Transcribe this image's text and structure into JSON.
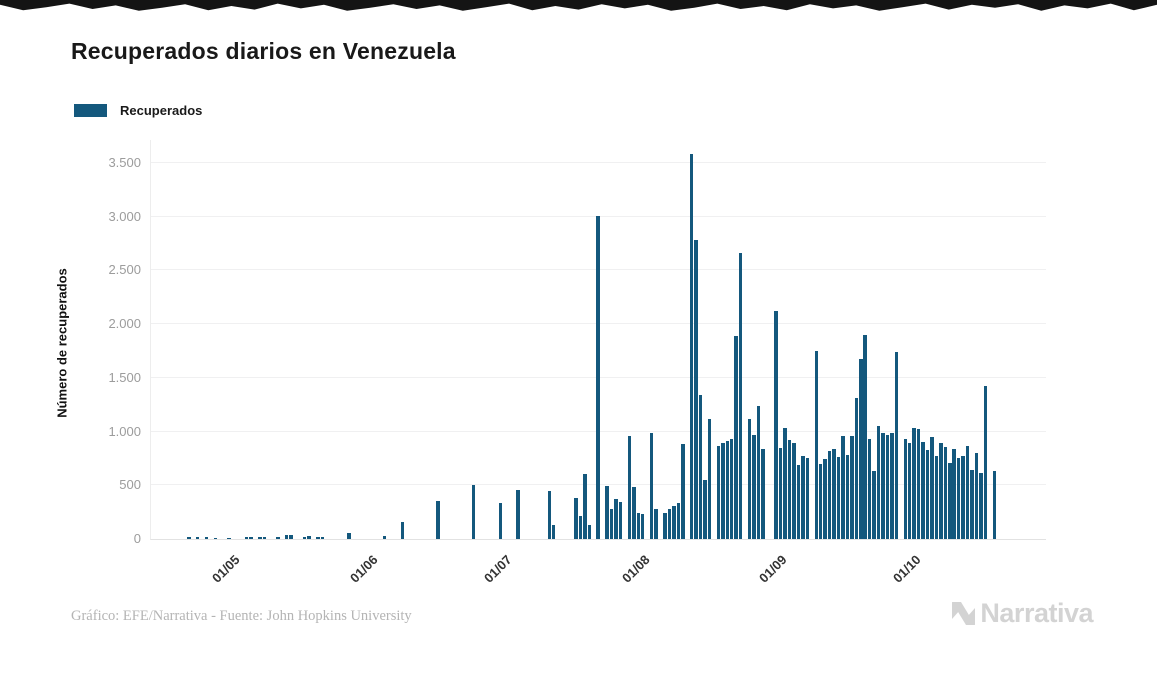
{
  "header": {
    "title": "Recuperados diarios en Venezuela"
  },
  "legend": {
    "items": [
      {
        "label": "Recuperados",
        "color": "#14587D"
      }
    ]
  },
  "footer": {
    "credit": "Gráfico: EFE/Narrativa - Fuente: John Hopkins University",
    "brand": "Narrativa"
  },
  "chart_data": {
    "type": "bar",
    "title": "Recuperados diarios en Venezuela",
    "xlabel": "",
    "ylabel": "Número de recuperados",
    "series_name": "Recuperados",
    "bar_color": "#14587D",
    "grid": true,
    "legend_position": "top-left",
    "ylim": [
      0,
      3500
    ],
    "x_domain": [
      "2020-04-13",
      "2020-10-29"
    ],
    "yticks": [
      {
        "value": 0,
        "label": "0"
      },
      {
        "value": 500,
        "label": "500"
      },
      {
        "value": 1000,
        "label": "1.000"
      },
      {
        "value": 1500,
        "label": "1.500"
      },
      {
        "value": 2000,
        "label": "2.000"
      },
      {
        "value": 2500,
        "label": "2.500"
      },
      {
        "value": 3000,
        "label": "3.000"
      },
      {
        "value": 3500,
        "label": "3.500"
      }
    ],
    "xticks": [
      {
        "date": "2020-05-01",
        "label": "01/05"
      },
      {
        "date": "2020-06-01",
        "label": "01/06"
      },
      {
        "date": "2020-07-01",
        "label": "01/07"
      },
      {
        "date": "2020-08-01",
        "label": "01/08"
      },
      {
        "date": "2020-09-01",
        "label": "01/09"
      },
      {
        "date": "2020-10-01",
        "label": "01/10"
      }
    ],
    "points": [
      [
        "2020-04-21",
        20
      ],
      [
        "2020-04-23",
        22
      ],
      [
        "2020-04-25",
        18
      ],
      [
        "2020-04-27",
        12
      ],
      [
        "2020-04-30",
        10
      ],
      [
        "2020-05-04",
        16
      ],
      [
        "2020-05-05",
        18
      ],
      [
        "2020-05-07",
        19
      ],
      [
        "2020-05-08",
        20
      ],
      [
        "2020-05-11",
        22
      ],
      [
        "2020-05-13",
        38
      ],
      [
        "2020-05-14",
        40
      ],
      [
        "2020-05-17",
        19
      ],
      [
        "2020-05-18",
        25
      ],
      [
        "2020-05-20",
        20
      ],
      [
        "2020-05-21",
        19
      ],
      [
        "2020-05-27",
        52
      ],
      [
        "2020-06-04",
        32
      ],
      [
        "2020-06-08",
        158
      ],
      [
        "2020-06-16",
        350
      ],
      [
        "2020-06-24",
        505
      ],
      [
        "2020-06-30",
        335
      ],
      [
        "2020-07-04",
        460
      ],
      [
        "2020-07-11",
        450
      ],
      [
        "2020-07-12",
        130
      ],
      [
        "2020-07-17",
        385
      ],
      [
        "2020-07-18",
        210
      ],
      [
        "2020-07-19",
        605
      ],
      [
        "2020-07-20",
        135
      ],
      [
        "2020-07-22",
        3010
      ],
      [
        "2020-07-24",
        495
      ],
      [
        "2020-07-25",
        280
      ],
      [
        "2020-07-26",
        375
      ],
      [
        "2020-07-27",
        345
      ],
      [
        "2020-07-29",
        955
      ],
      [
        "2020-07-30",
        480
      ],
      [
        "2020-07-31",
        240
      ],
      [
        "2020-08-01",
        230
      ],
      [
        "2020-08-03",
        985
      ],
      [
        "2020-08-04",
        280
      ],
      [
        "2020-08-06",
        245
      ],
      [
        "2020-08-07",
        280
      ],
      [
        "2020-08-08",
        310
      ],
      [
        "2020-08-09",
        335
      ],
      [
        "2020-08-10",
        885
      ],
      [
        "2020-08-12",
        3580
      ],
      [
        "2020-08-13",
        2780
      ],
      [
        "2020-08-14",
        1340
      ],
      [
        "2020-08-15",
        545
      ],
      [
        "2020-08-16",
        1120
      ],
      [
        "2020-08-18",
        870
      ],
      [
        "2020-08-19",
        890
      ],
      [
        "2020-08-20",
        915
      ],
      [
        "2020-08-21",
        930
      ],
      [
        "2020-08-22",
        1890
      ],
      [
        "2020-08-23",
        2660
      ],
      [
        "2020-08-25",
        1120
      ],
      [
        "2020-08-26",
        965
      ],
      [
        "2020-08-27",
        1235
      ],
      [
        "2020-08-28",
        840
      ],
      [
        "2020-08-31",
        2120
      ],
      [
        "2020-09-01",
        850
      ],
      [
        "2020-09-02",
        1030
      ],
      [
        "2020-09-03",
        925
      ],
      [
        "2020-09-04",
        890
      ],
      [
        "2020-09-05",
        690
      ],
      [
        "2020-09-06",
        775
      ],
      [
        "2020-09-07",
        750
      ],
      [
        "2020-09-09",
        1750
      ],
      [
        "2020-09-10",
        700
      ],
      [
        "2020-09-11",
        745
      ],
      [
        "2020-09-12",
        815
      ],
      [
        "2020-09-13",
        840
      ],
      [
        "2020-09-14",
        765
      ],
      [
        "2020-09-15",
        960
      ],
      [
        "2020-09-16",
        785
      ],
      [
        "2020-09-17",
        960
      ],
      [
        "2020-09-18",
        1310
      ],
      [
        "2020-09-19",
        1675
      ],
      [
        "2020-09-20",
        1900
      ],
      [
        "2020-09-21",
        930
      ],
      [
        "2020-09-22",
        635
      ],
      [
        "2020-09-23",
        1055
      ],
      [
        "2020-09-24",
        990
      ],
      [
        "2020-09-25",
        970
      ],
      [
        "2020-09-26",
        990
      ],
      [
        "2020-09-27",
        1740
      ],
      [
        "2020-09-29",
        935
      ],
      [
        "2020-09-30",
        890
      ],
      [
        "2020-10-01",
        1035
      ],
      [
        "2020-10-02",
        1020
      ],
      [
        "2020-10-03",
        900
      ],
      [
        "2020-10-04",
        830
      ],
      [
        "2020-10-05",
        945
      ],
      [
        "2020-10-06",
        775
      ],
      [
        "2020-10-07",
        890
      ],
      [
        "2020-10-08",
        860
      ],
      [
        "2020-10-09",
        710
      ],
      [
        "2020-10-10",
        840
      ],
      [
        "2020-10-11",
        750
      ],
      [
        "2020-10-12",
        775
      ],
      [
        "2020-10-13",
        870
      ],
      [
        "2020-10-14",
        645
      ],
      [
        "2020-10-15",
        805
      ],
      [
        "2020-10-16",
        615
      ],
      [
        "2020-10-17",
        1420
      ],
      [
        "2020-10-19",
        635
      ]
    ]
  }
}
